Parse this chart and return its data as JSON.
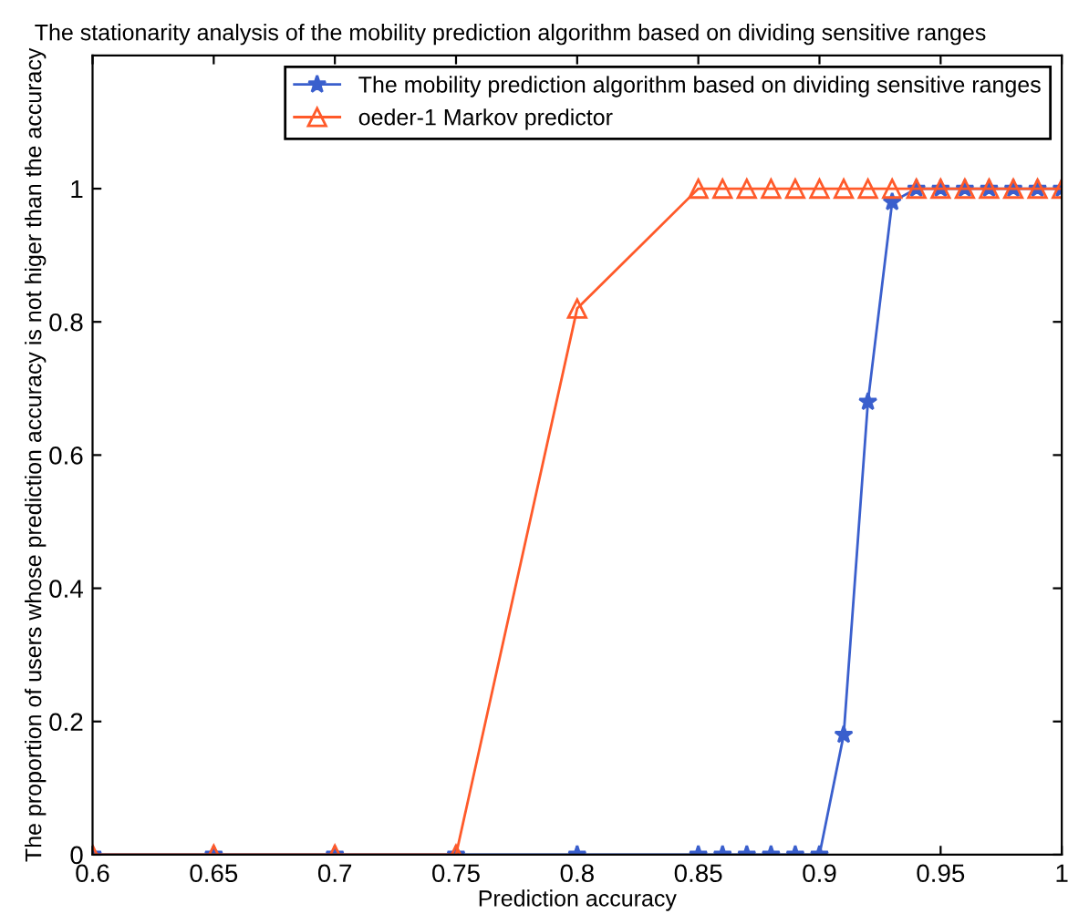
{
  "chart_data": {
    "type": "line",
    "title": "The stationarity analysis of the mobility prediction algorithm based on dividing sensitive ranges",
    "xlabel": "Prediction accuracy",
    "ylabel": "The proportion of users whose prediction accuracy is not higer than the accuracy",
    "xlim": [
      0.6,
      1
    ],
    "xticks": [
      0.6,
      0.65,
      0.7,
      0.75,
      0.8,
      0.85,
      0.9,
      0.95,
      1
    ],
    "ylim": [
      0,
      1.2
    ],
    "yticks": [
      0,
      0.2,
      0.4,
      0.6,
      0.8,
      1
    ],
    "grid": false,
    "legend": "top right",
    "series": [
      {
        "name": "The mobility prediction algorithm based on dividing sensitive ranges",
        "color": "#3a5fcd",
        "marker": "star",
        "x": [
          0.6,
          0.65,
          0.7,
          0.75,
          0.8,
          0.85,
          0.86,
          0.87,
          0.88,
          0.89,
          0.9,
          0.91,
          0.92,
          0.93,
          0.94,
          0.95,
          0.96,
          0.97,
          0.98,
          0.99,
          1.0
        ],
        "values": [
          0,
          0,
          0,
          0,
          0,
          0,
          0,
          0,
          0,
          0,
          0,
          0.18,
          0.68,
          0.98,
          1,
          1,
          1,
          1,
          1,
          1,
          1
        ]
      },
      {
        "name": "oeder-1 Markov predictor",
        "color": "#ff5a2a",
        "marker": "triangle",
        "x": [
          0.6,
          0.65,
          0.7,
          0.75,
          0.8,
          0.85,
          0.86,
          0.87,
          0.88,
          0.89,
          0.9,
          0.91,
          0.92,
          0.93,
          0.94,
          0.95,
          0.96,
          0.97,
          0.98,
          0.99,
          1.0
        ],
        "values": [
          0,
          0,
          0,
          0,
          0.82,
          1,
          1,
          1,
          1,
          1,
          1,
          1,
          1,
          1,
          1,
          1,
          1,
          1,
          1,
          1,
          1
        ]
      }
    ]
  }
}
